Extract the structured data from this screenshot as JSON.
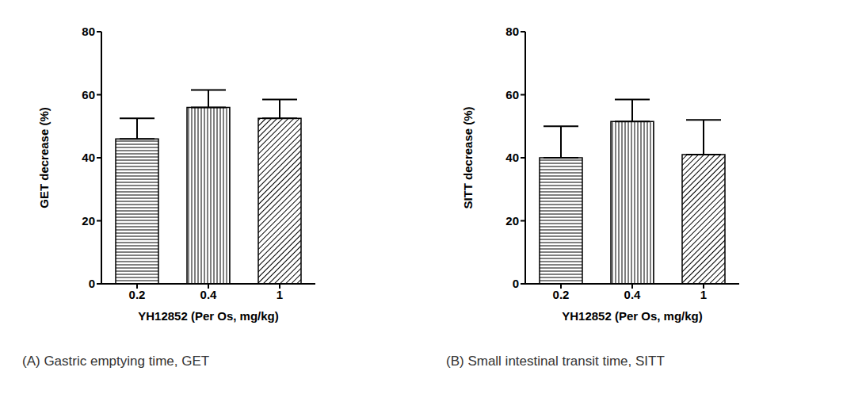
{
  "chart_data": [
    {
      "type": "bar",
      "title": "(A) Gastric emptying time, GET",
      "x_label": "YH12852 (Per Os, mg/kg)",
      "y_label": "GET decrease (%)",
      "categories": [
        "0.2",
        "0.4",
        "1"
      ],
      "values": [
        46,
        56,
        52.5
      ],
      "errors": [
        6.5,
        5.5,
        6
      ],
      "ylim": [
        0,
        80
      ],
      "yticks": [
        0,
        20,
        40,
        60,
        80
      ],
      "color": "#000000"
    },
    {
      "type": "bar",
      "title": "(B) Small intestinal transit time, SITT",
      "x_label": "YH12852 (Per Os, mg/kg)",
      "y_label": "SITT decrease (%)",
      "categories": [
        "0.2",
        "0.4",
        "1"
      ],
      "values": [
        40,
        51.5,
        41
      ],
      "errors": [
        10,
        7,
        11
      ],
      "ylim": [
        0,
        80
      ],
      "yticks": [
        0,
        20,
        40,
        60,
        80
      ],
      "color": "#000000"
    }
  ]
}
